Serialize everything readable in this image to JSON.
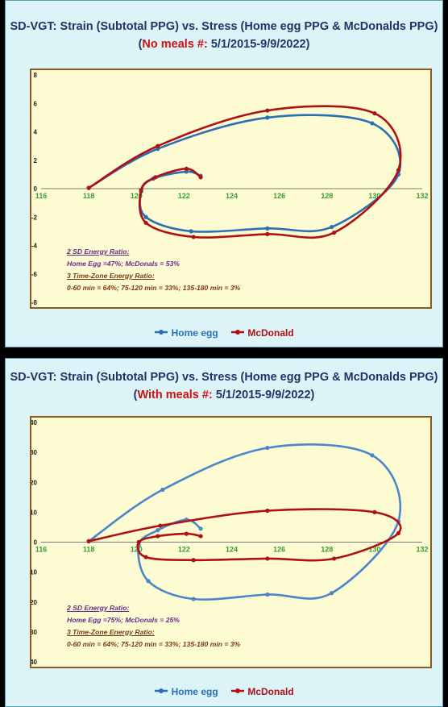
{
  "chart_data": [
    {
      "type": "line",
      "title_line1": "SD-VGT:  Strain (Subtotal PPG) vs. Stress (Home egg PPG & McDonalds PPG)",
      "title_line2_prefix": "(",
      "title_line2_red": "No meals #:",
      "title_line2_rest": "  5/1/2015-9/9/2022)",
      "xlim": [
        116,
        132
      ],
      "ylim": [
        -8,
        8
      ],
      "x_ticks": [
        "116",
        "118",
        "120",
        "122",
        "124",
        "126",
        "128",
        "130",
        "132"
      ],
      "y_ticks": [
        "8",
        "6",
        "4",
        "2",
        "0",
        "-2",
        "-4",
        "-6",
        "-8"
      ],
      "x_tick_values": [
        116,
        118,
        120,
        122,
        124,
        126,
        128,
        130,
        132
      ],
      "y_tick_values": [
        8,
        6,
        4,
        2,
        0,
        -2,
        -4,
        -6,
        -8
      ],
      "legend_position": "bottom-center",
      "series": [
        {
          "name": "Home egg",
          "color": "#2c6fb5",
          "points": [
            [
              118,
              0.05
            ],
            [
              120.9,
              2.8
            ],
            [
              125.5,
              5.0
            ],
            [
              129.9,
              4.6
            ],
            [
              131,
              1.0
            ],
            [
              128.2,
              -2.7
            ],
            [
              125.5,
              -2.8
            ],
            [
              122.3,
              -3.0
            ],
            [
              120.4,
              -2.0
            ],
            [
              120.2,
              -0.2
            ],
            [
              120.7,
              0.7
            ],
            [
              122.1,
              1.2
            ],
            [
              122.7,
              0.9
            ]
          ]
        },
        {
          "name": "McDonald",
          "color": "#b01010",
          "points": [
            [
              118,
              0.05
            ],
            [
              120.9,
              3.0
            ],
            [
              125.5,
              5.5
            ],
            [
              130,
              5.3
            ],
            [
              131,
              1.3
            ],
            [
              128.3,
              -3.1
            ],
            [
              125.5,
              -3.2
            ],
            [
              122.4,
              -3.4
            ],
            [
              120.4,
              -2.4
            ],
            [
              120.2,
              -0.1
            ],
            [
              120.8,
              0.8
            ],
            [
              122.1,
              1.4
            ],
            [
              122.7,
              0.8
            ]
          ]
        }
      ],
      "notes": {
        "sd_title": "2 SD Energy Ratio:",
        "sd_text": "Home Egg =47%;  McDonals = 53%",
        "tz_title": "3 Time-Zone Energy Ratio:",
        "tz_text": "0-60 min = 64%;  75-120 min = 33%;  135-180 min = 3%"
      }
    },
    {
      "type": "line",
      "title_line1": "SD-VGT:  Strain (Subtotal PPG) vs. Stress (Home egg PPG & McDonalds PPG)",
      "title_line2_prefix": "(",
      "title_line2_red": "With meals #:",
      "title_line2_rest": "  5/1/2015-9/9/2022)",
      "xlim": [
        116,
        132
      ],
      "ylim": [
        -40,
        40
      ],
      "x_ticks": [
        "116",
        "118",
        "120",
        "122",
        "124",
        "126",
        "128",
        "130",
        "132"
      ],
      "y_ticks": [
        "40",
        "30",
        "20",
        "10",
        "0",
        "-10",
        "-20",
        "-30",
        "-40"
      ],
      "x_tick_values": [
        116,
        118,
        120,
        122,
        124,
        126,
        128,
        130,
        132
      ],
      "y_tick_values": [
        40,
        30,
        20,
        10,
        0,
        -10,
        -20,
        -30,
        -40
      ],
      "legend_position": "bottom-center",
      "series": [
        {
          "name": "Home egg",
          "color": "#4a86c8",
          "points": [
            [
              118,
              0.3
            ],
            [
              121.1,
              17.5
            ],
            [
              125.5,
              31.5
            ],
            [
              129.9,
              29.0
            ],
            [
              131,
              7.0
            ],
            [
              128.2,
              -17.0
            ],
            [
              125.5,
              -17.5
            ],
            [
              122.4,
              -19.0
            ],
            [
              120.5,
              -13.0
            ],
            [
              120.1,
              -1.0
            ],
            [
              120.9,
              4.0
            ],
            [
              122.1,
              7.5
            ],
            [
              122.7,
              4.5
            ]
          ]
        },
        {
          "name": "McDonald",
          "color": "#b01010",
          "points": [
            [
              118,
              0.3
            ],
            [
              121,
              5.5
            ],
            [
              125.5,
              10.5
            ],
            [
              130,
              10.0
            ],
            [
              131,
              3.0
            ],
            [
              128.3,
              -5.5
            ],
            [
              125.5,
              -5.5
            ],
            [
              122.4,
              -6.0
            ],
            [
              120.4,
              -5.0
            ],
            [
              120.1,
              0
            ],
            [
              120.9,
              2.0
            ],
            [
              122.1,
              2.8
            ],
            [
              122.7,
              2.0
            ]
          ]
        }
      ],
      "notes": {
        "sd_title": "2 SD Energy Ratio:",
        "sd_text": "Home Egg =75%;  McDonals = 25%",
        "tz_title": "3 Time-Zone Energy Ratio:",
        "tz_text": "0-60 min = 64%;  75-120 min = 33%;  135-180 min = 3%"
      }
    }
  ],
  "legend": {
    "home_label": "Home egg",
    "mcd_label": "McDonald"
  }
}
